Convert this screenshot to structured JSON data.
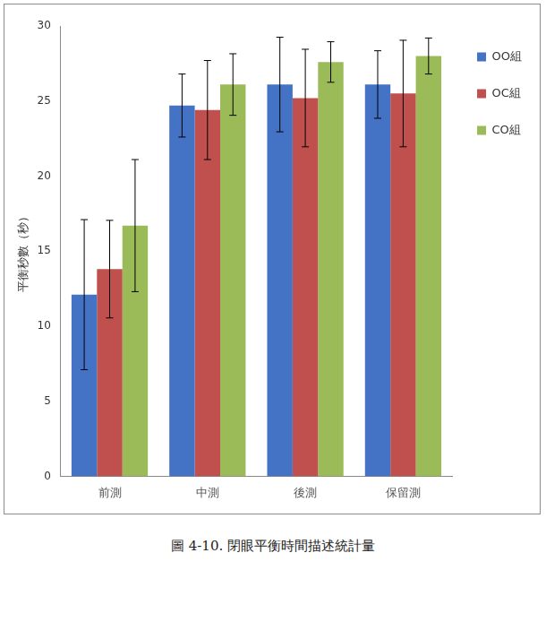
{
  "chart_data": {
    "type": "bar",
    "title": "圖 4-10. 閉眼平衡時間描述統計量",
    "y_label": "平衡秒數（秒）",
    "categories": [
      "前測",
      "中測",
      "後測",
      "保留測"
    ],
    "series": [
      {
        "name": "OO組",
        "color": "#4472c4",
        "values": [
          12.1,
          24.7,
          26.1,
          26.1
        ],
        "errors": [
          5.0,
          2.1,
          3.15,
          2.25
        ]
      },
      {
        "name": "OC組",
        "color": "#c0504d",
        "values": [
          13.8,
          24.4,
          25.2,
          25.5
        ],
        "errors": [
          3.25,
          3.3,
          3.25,
          3.55
        ]
      },
      {
        "name": "CO組",
        "color": "#9bbb59",
        "values": [
          16.7,
          26.1,
          27.6,
          28.0
        ],
        "errors": [
          4.4,
          2.05,
          1.35,
          1.2
        ]
      }
    ],
    "ylim": [
      0,
      30
    ],
    "yticks": [
      0,
      5,
      10,
      15,
      20,
      25,
      30
    ],
    "grid": false,
    "legend": "right"
  }
}
